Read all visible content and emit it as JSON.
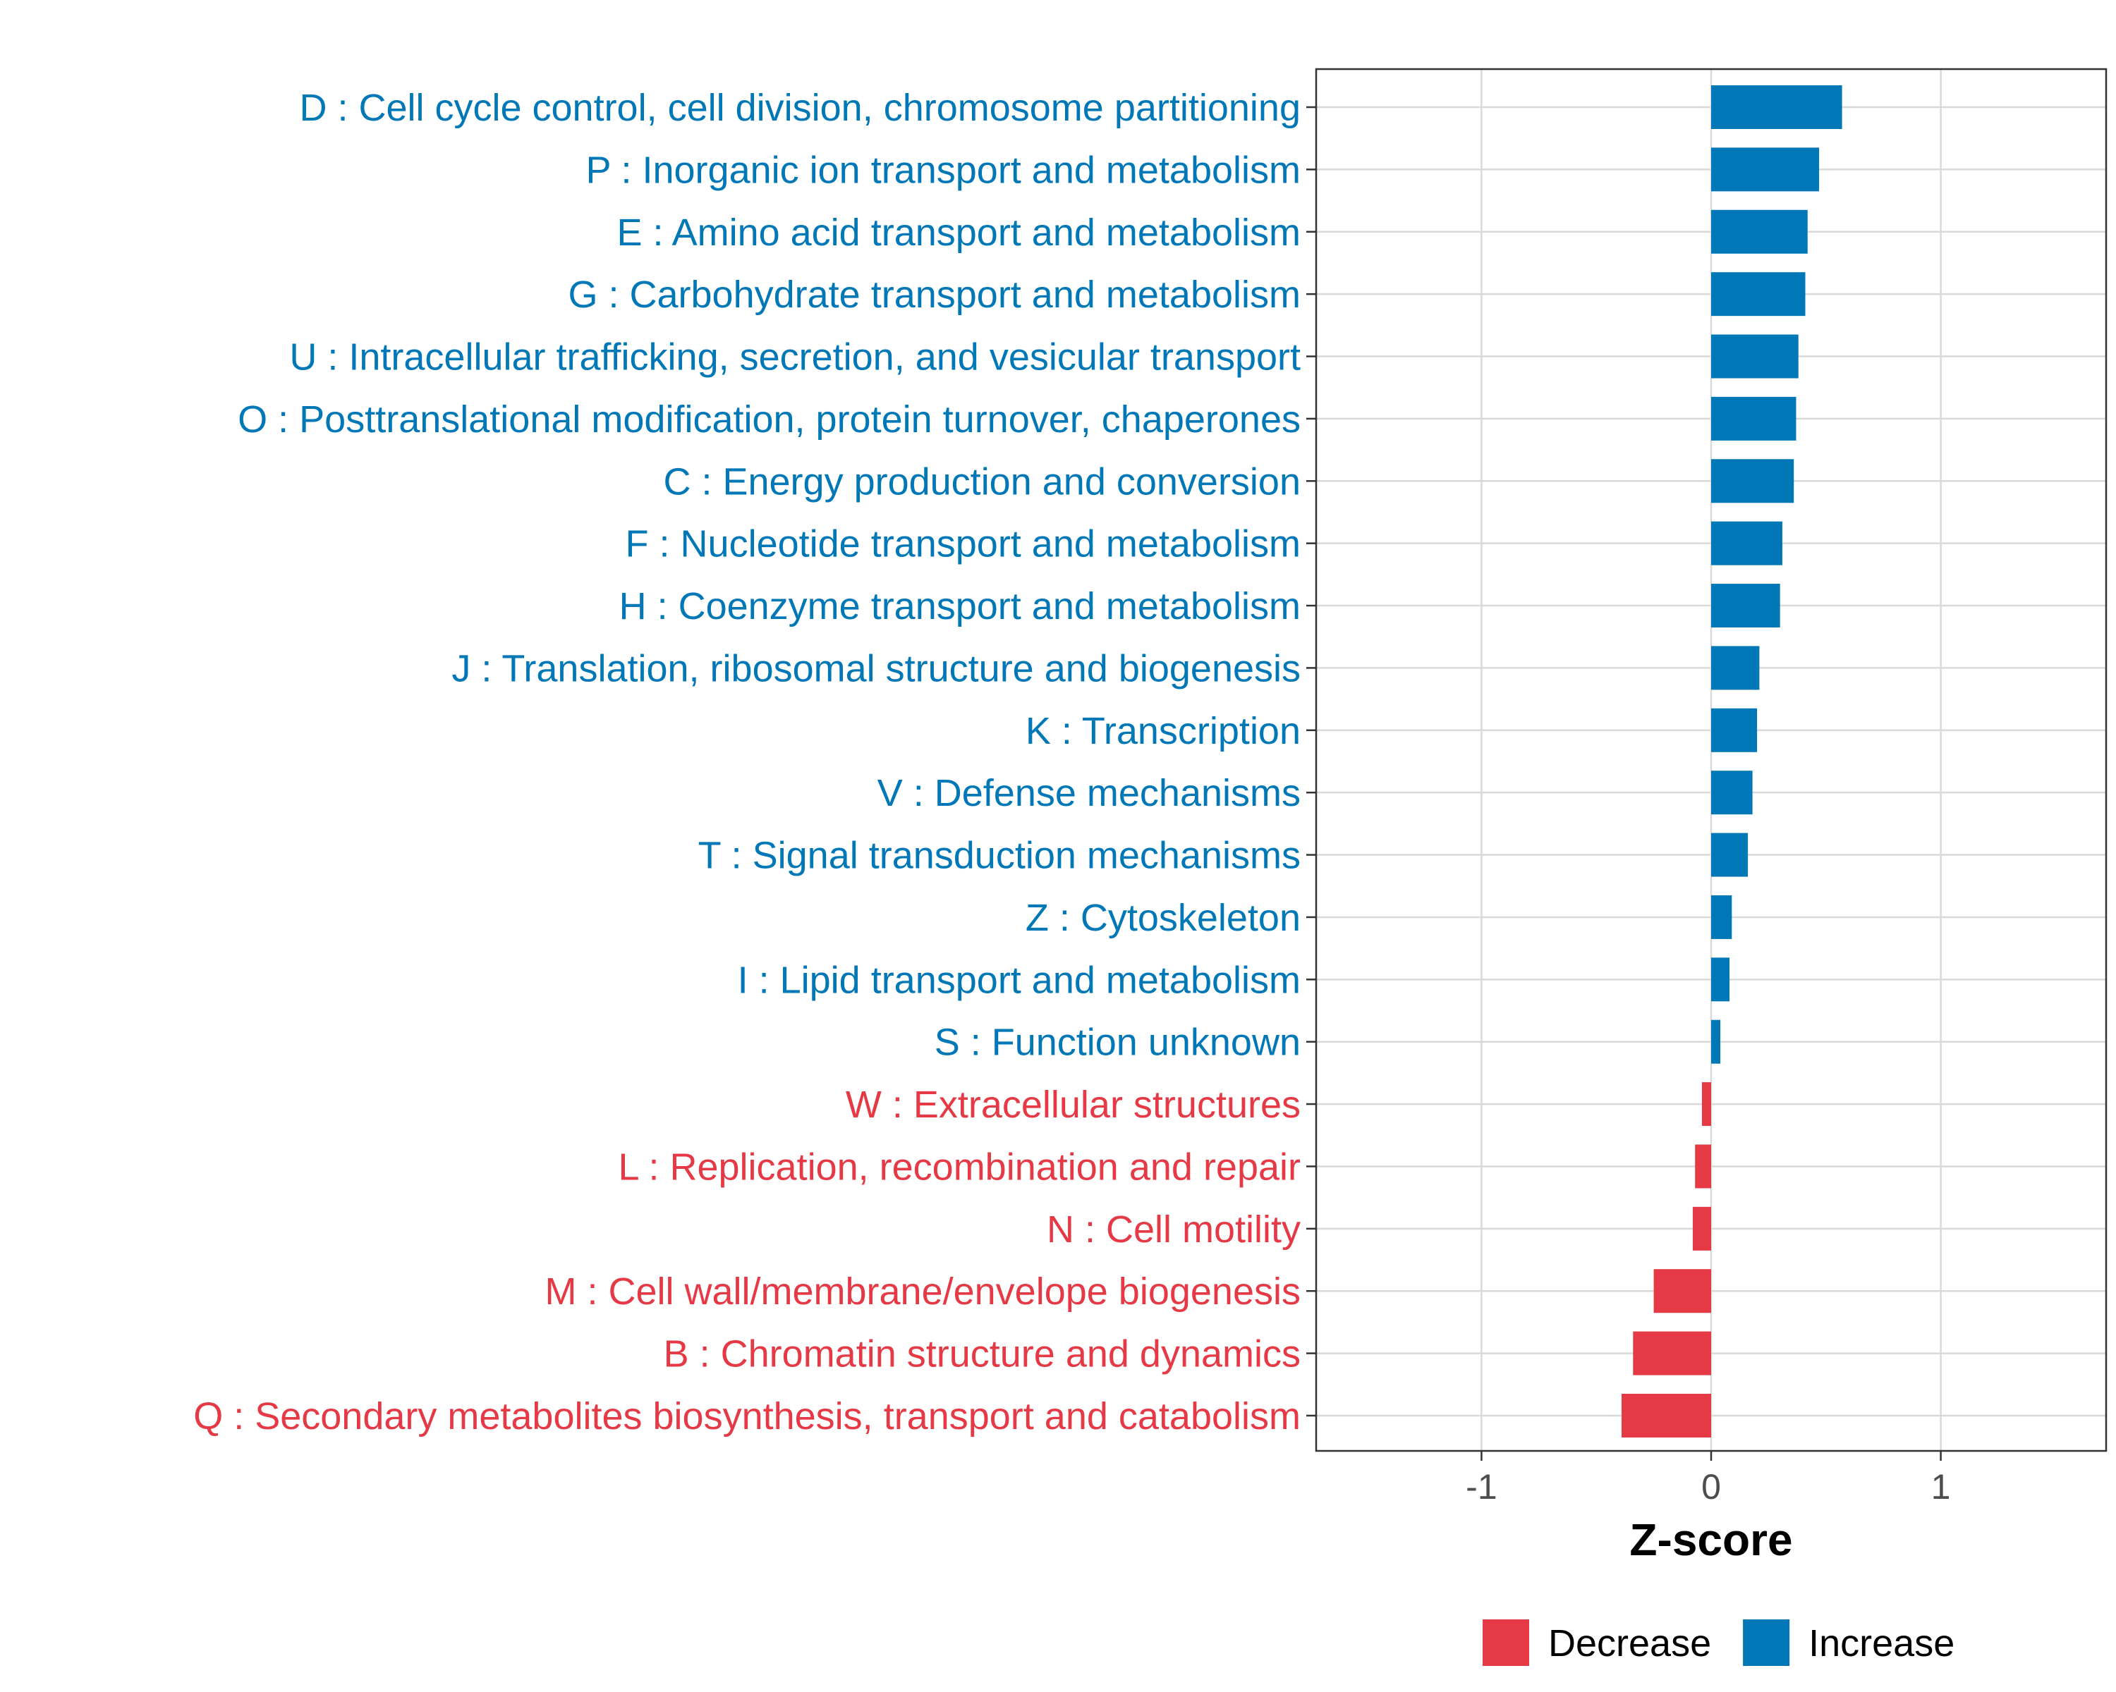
{
  "chart_data": {
    "type": "bar",
    "orientation": "horizontal",
    "title": "",
    "xlabel": "Z-score",
    "ylabel": "",
    "xlim": [
      -1.72,
      1.72
    ],
    "xticks": [
      {
        "value": -1,
        "label": "-1"
      },
      {
        "value": 0,
        "label": "0"
      },
      {
        "value": 1,
        "label": "1"
      }
    ],
    "grid": true,
    "legend_position": "bottom",
    "colors": {
      "Decrease": "#e63946",
      "Increase": "#0077b6"
    },
    "legend": [
      {
        "label": "Decrease",
        "color": "#e63946"
      },
      {
        "label": "Increase",
        "color": "#0077b6"
      }
    ],
    "categories": [
      {
        "label": "D : Cell cycle control, cell division, chromosome partitioning",
        "value": 0.57,
        "group": "Increase"
      },
      {
        "label": "P : Inorganic ion transport and metabolism",
        "value": 0.47,
        "group": "Increase"
      },
      {
        "label": "E : Amino acid transport and metabolism",
        "value": 0.42,
        "group": "Increase"
      },
      {
        "label": "G : Carbohydrate transport and metabolism",
        "value": 0.41,
        "group": "Increase"
      },
      {
        "label": "U : Intracellular trafficking, secretion, and vesicular transport",
        "value": 0.38,
        "group": "Increase"
      },
      {
        "label": "O : Posttranslational modification, protein turnover, chaperones",
        "value": 0.37,
        "group": "Increase"
      },
      {
        "label": "C : Energy production and conversion",
        "value": 0.36,
        "group": "Increase"
      },
      {
        "label": "F : Nucleotide transport and metabolism",
        "value": 0.31,
        "group": "Increase"
      },
      {
        "label": "H : Coenzyme transport and metabolism",
        "value": 0.3,
        "group": "Increase"
      },
      {
        "label": "J : Translation, ribosomal structure and biogenesis",
        "value": 0.21,
        "group": "Increase"
      },
      {
        "label": "K : Transcription",
        "value": 0.2,
        "group": "Increase"
      },
      {
        "label": "V : Defense mechanisms",
        "value": 0.18,
        "group": "Increase"
      },
      {
        "label": "T : Signal transduction mechanisms",
        "value": 0.16,
        "group": "Increase"
      },
      {
        "label": "Z : Cytoskeleton",
        "value": 0.09,
        "group": "Increase"
      },
      {
        "label": "I : Lipid transport and metabolism",
        "value": 0.08,
        "group": "Increase"
      },
      {
        "label": "S : Function unknown",
        "value": 0.04,
        "group": "Increase"
      },
      {
        "label": "W : Extracellular structures",
        "value": -0.04,
        "group": "Decrease"
      },
      {
        "label": "L : Replication, recombination and repair",
        "value": -0.07,
        "group": "Decrease"
      },
      {
        "label": "N : Cell motility",
        "value": -0.08,
        "group": "Decrease"
      },
      {
        "label": "M : Cell wall/membrane/envelope biogenesis",
        "value": -0.25,
        "group": "Decrease"
      },
      {
        "label": "B : Chromatin structure and dynamics",
        "value": -0.34,
        "group": "Decrease"
      },
      {
        "label": "Q : Secondary metabolites biosynthesis, transport and catabolism",
        "value": -0.39,
        "group": "Decrease"
      }
    ]
  }
}
